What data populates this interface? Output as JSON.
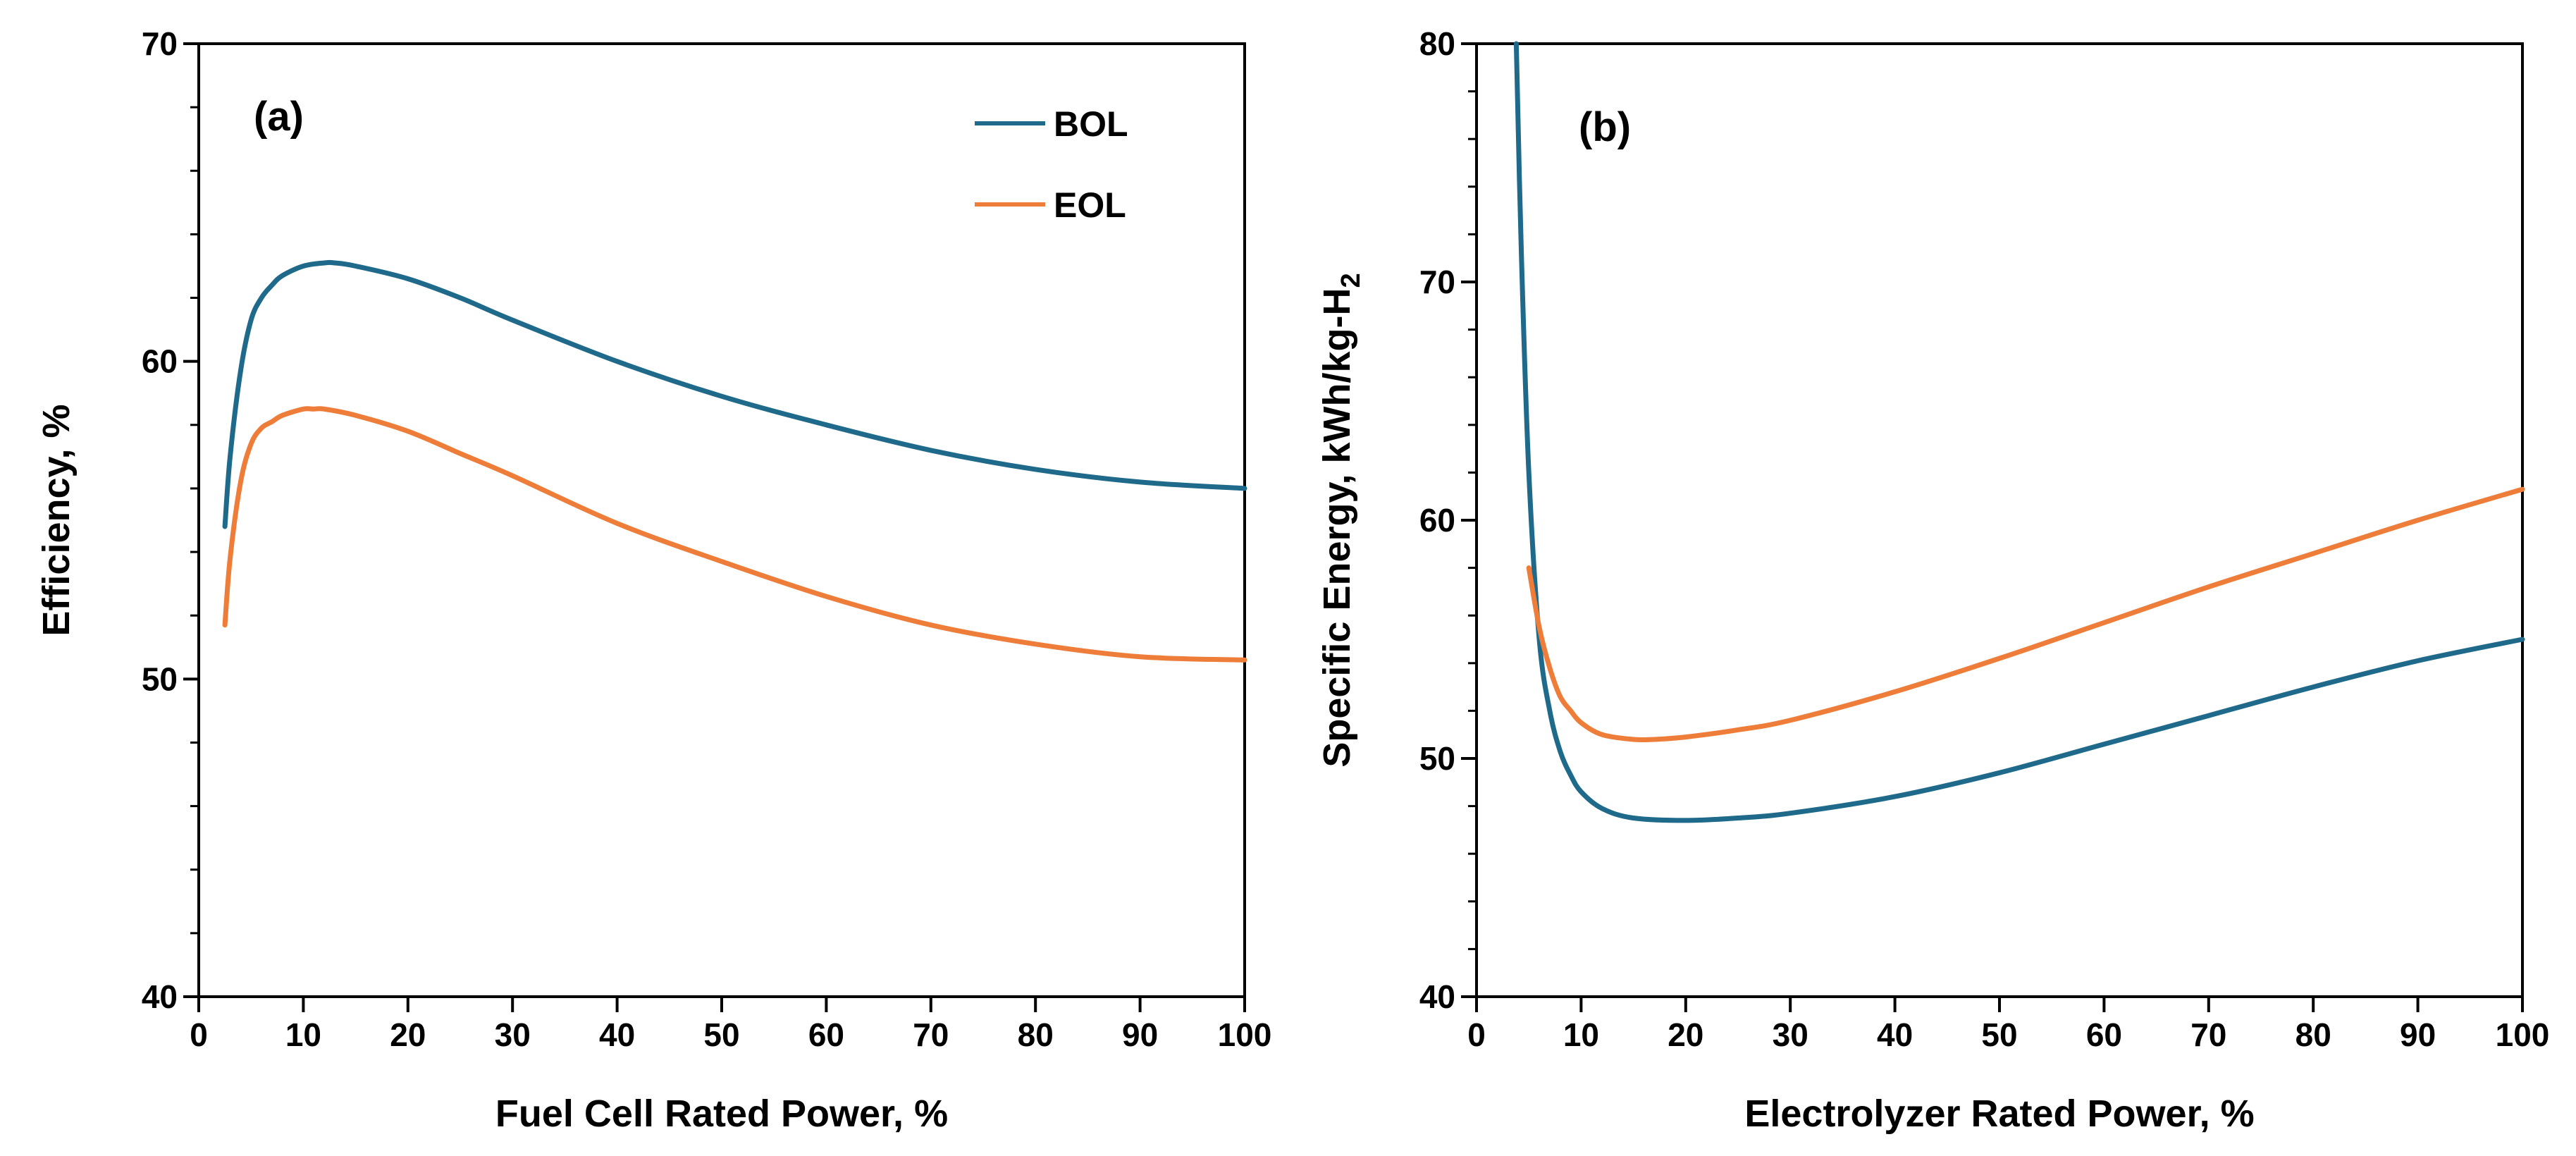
{
  "chart_data": [
    {
      "type": "line",
      "panel_label": "(a)",
      "xlabel": "Fuel Cell Rated Power, %",
      "ylabel": "Efficiency, %",
      "xlim": [
        0,
        100
      ],
      "ylim": [
        40,
        70
      ],
      "xticks": [
        0,
        10,
        20,
        30,
        40,
        50,
        60,
        70,
        80,
        90,
        100
      ],
      "yticks": [
        40,
        50,
        60,
        70
      ],
      "grid": false,
      "legend_position": "top-right",
      "series": [
        {
          "name": "BOL",
          "color": "#1f6a8a",
          "x": [
            2.5,
            3,
            4,
            5,
            6,
            7,
            8,
            10,
            12,
            13,
            15,
            20,
            25,
            30,
            40,
            50,
            60,
            70,
            80,
            90,
            100
          ],
          "y": [
            54.8,
            57.0,
            59.7,
            61.3,
            62.0,
            62.4,
            62.7,
            63.0,
            63.1,
            63.1,
            63.0,
            62.6,
            62.0,
            61.3,
            60.0,
            58.9,
            58.0,
            57.2,
            56.6,
            56.2,
            56.0
          ]
        },
        {
          "name": "EOL",
          "color": "#ee7d3a",
          "x": [
            2.5,
            3,
            4,
            5,
            6,
            7,
            8,
            10,
            11,
            12,
            15,
            20,
            25,
            30,
            40,
            50,
            60,
            70,
            80,
            90,
            100
          ],
          "y": [
            51.7,
            53.8,
            56.2,
            57.4,
            57.9,
            58.1,
            58.3,
            58.5,
            58.5,
            58.5,
            58.3,
            57.8,
            57.1,
            56.4,
            54.9,
            53.7,
            52.6,
            51.7,
            51.1,
            50.7,
            50.6
          ]
        }
      ]
    },
    {
      "type": "line",
      "panel_label": "(b)",
      "xlabel": "Electrolyzer Rated Power, %",
      "ylabel_prefix": "Specific Energy, kWh/kg-H",
      "ylabel_subscript": "2",
      "xlim": [
        0,
        100
      ],
      "ylim": [
        40,
        80
      ],
      "xticks": [
        0,
        10,
        20,
        30,
        40,
        50,
        60,
        70,
        80,
        90,
        100
      ],
      "yticks": [
        40,
        50,
        60,
        70,
        80
      ],
      "grid": false,
      "series": [
        {
          "name": "BOL",
          "color": "#1f6a8a",
          "x": [
            3.8,
            4.3,
            5,
            6,
            7,
            8,
            9,
            10,
            12,
            15,
            20,
            25,
            30,
            40,
            50,
            60,
            70,
            80,
            90,
            100
          ],
          "y": [
            80.0,
            71.0,
            62.0,
            55.0,
            52.0,
            50.3,
            49.3,
            48.6,
            47.9,
            47.5,
            47.4,
            47.5,
            47.7,
            48.4,
            49.4,
            50.6,
            51.8,
            53.0,
            54.1,
            55.0
          ]
        },
        {
          "name": "EOL",
          "color": "#ee7d3a",
          "x": [
            5,
            6,
            7,
            8,
            9,
            10,
            12,
            15,
            17,
            20,
            25,
            30,
            40,
            50,
            60,
            70,
            80,
            90,
            100
          ],
          "y": [
            58.0,
            55.5,
            53.8,
            52.6,
            52.0,
            51.5,
            51.0,
            50.8,
            50.8,
            50.9,
            51.2,
            51.6,
            52.8,
            54.2,
            55.7,
            57.2,
            58.6,
            60.0,
            61.3
          ]
        }
      ]
    }
  ]
}
